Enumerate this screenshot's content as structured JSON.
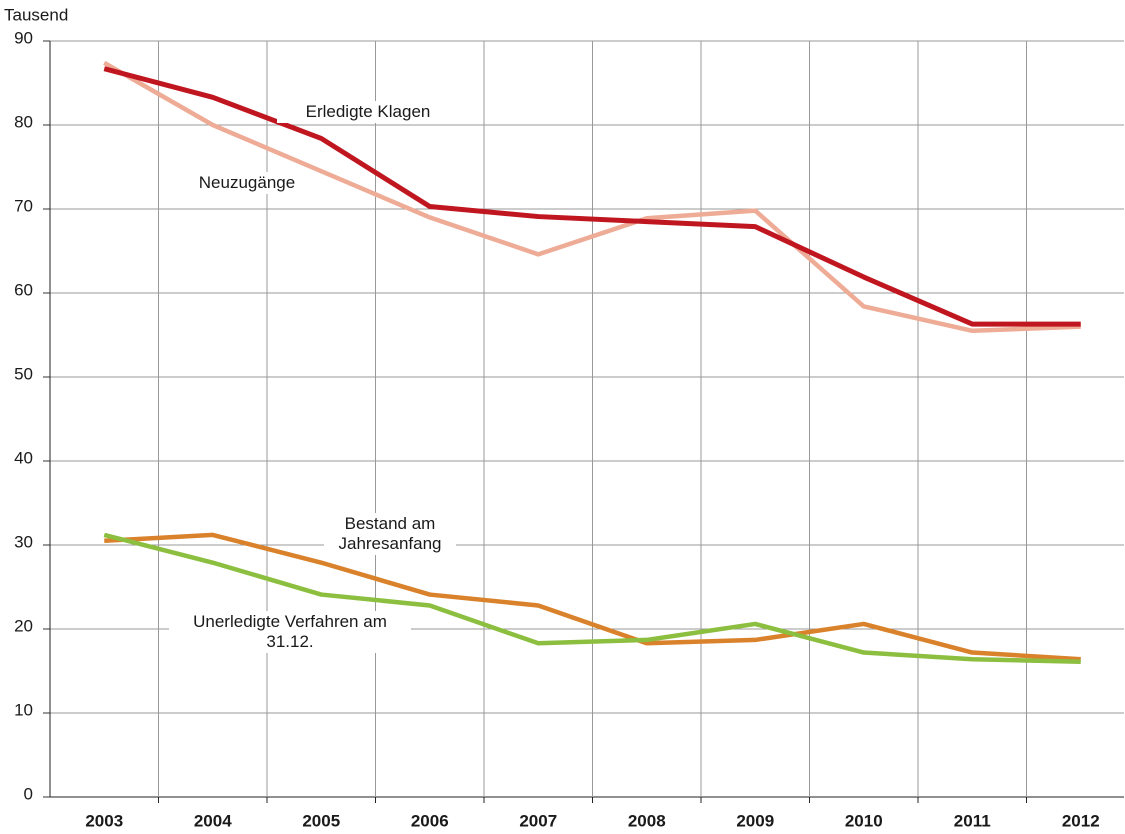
{
  "chart_data": {
    "type": "line",
    "y_label": "Tausend",
    "categories": [
      "2003",
      "2004",
      "2005",
      "2006",
      "2007",
      "2008",
      "2009",
      "2010",
      "2011",
      "2012"
    ],
    "series": [
      {
        "name": "Neuzugänge",
        "color": "#eeab96",
        "values": [
          87.4,
          80.0,
          74.5,
          69.0,
          64.6,
          68.9,
          69.8,
          58.4,
          55.5,
          56.0
        ]
      },
      {
        "name": "Erledigte Klagen",
        "color": "#c0161f",
        "values": [
          86.7,
          83.3,
          78.4,
          70.3,
          69.1,
          68.5,
          67.9,
          61.9,
          56.3,
          56.3
        ]
      },
      {
        "name": "Bestand am Jahresanfang",
        "color": "#d9822b",
        "values": [
          30.5,
          31.2,
          27.9,
          24.1,
          22.8,
          18.3,
          18.7,
          20.6,
          17.2,
          16.4
        ]
      },
      {
        "name": "Unerledigte Verfahren am 31.12.",
        "color": "#8cbf3f",
        "values": [
          31.2,
          27.9,
          24.1,
          22.8,
          18.3,
          18.7,
          20.6,
          17.2,
          16.4,
          16.1
        ]
      }
    ],
    "ylim": [
      0,
      90
    ],
    "yticks": [
      0,
      10,
      20,
      30,
      40,
      50,
      60,
      70,
      80,
      90
    ],
    "grid": true
  }
}
